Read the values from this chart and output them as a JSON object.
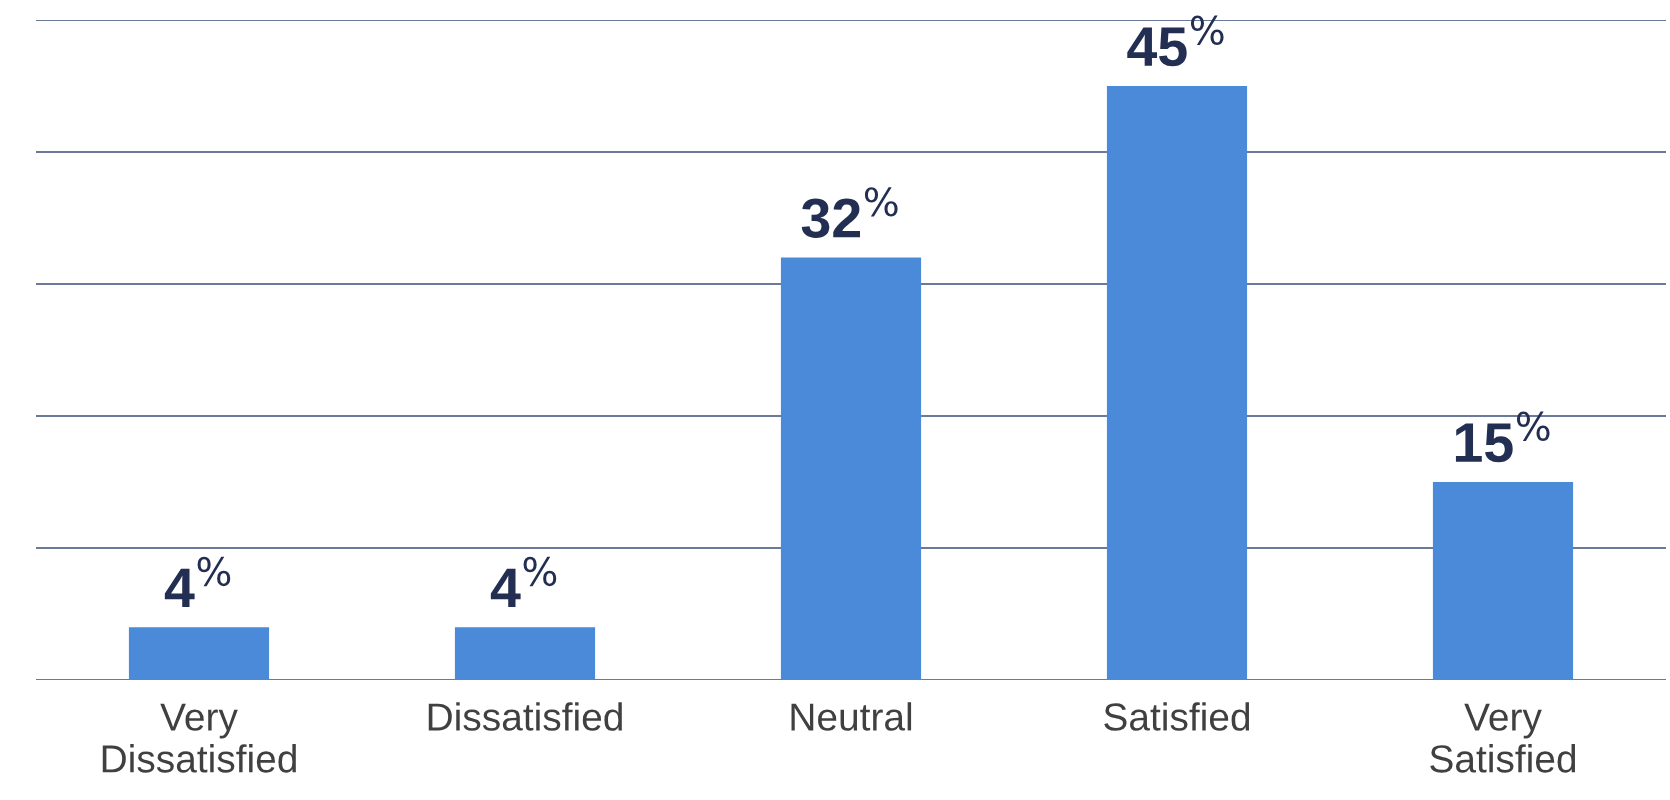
{
  "chart_data": {
    "type": "bar",
    "categories": [
      "Very\nDissatisfied",
      "Dissatisfied",
      "Neutral",
      "Satisfied",
      "Very\nSatisfied"
    ],
    "values": [
      4,
      4,
      32,
      45,
      15
    ],
    "value_labels": [
      "4$^{%}$",
      "4$^{%}$",
      "32$^{%}$",
      "45$^{%}$",
      "15$^{%}$"
    ],
    "color": "#4a8ad8",
    "ylim": [
      0,
      50
    ],
    "yticks": [
      {
        "value": 0,
        "label": null
      },
      {
        "value": 10,
        "label": null
      },
      {
        "value": 20,
        "label": null
      },
      {
        "value": 30,
        "label": null
      },
      {
        "value": 40,
        "label": null
      },
      {
        "value": 50,
        "label": null
      }
    ],
    "tick_labels": "x",
    "grid": "y"
  }
}
